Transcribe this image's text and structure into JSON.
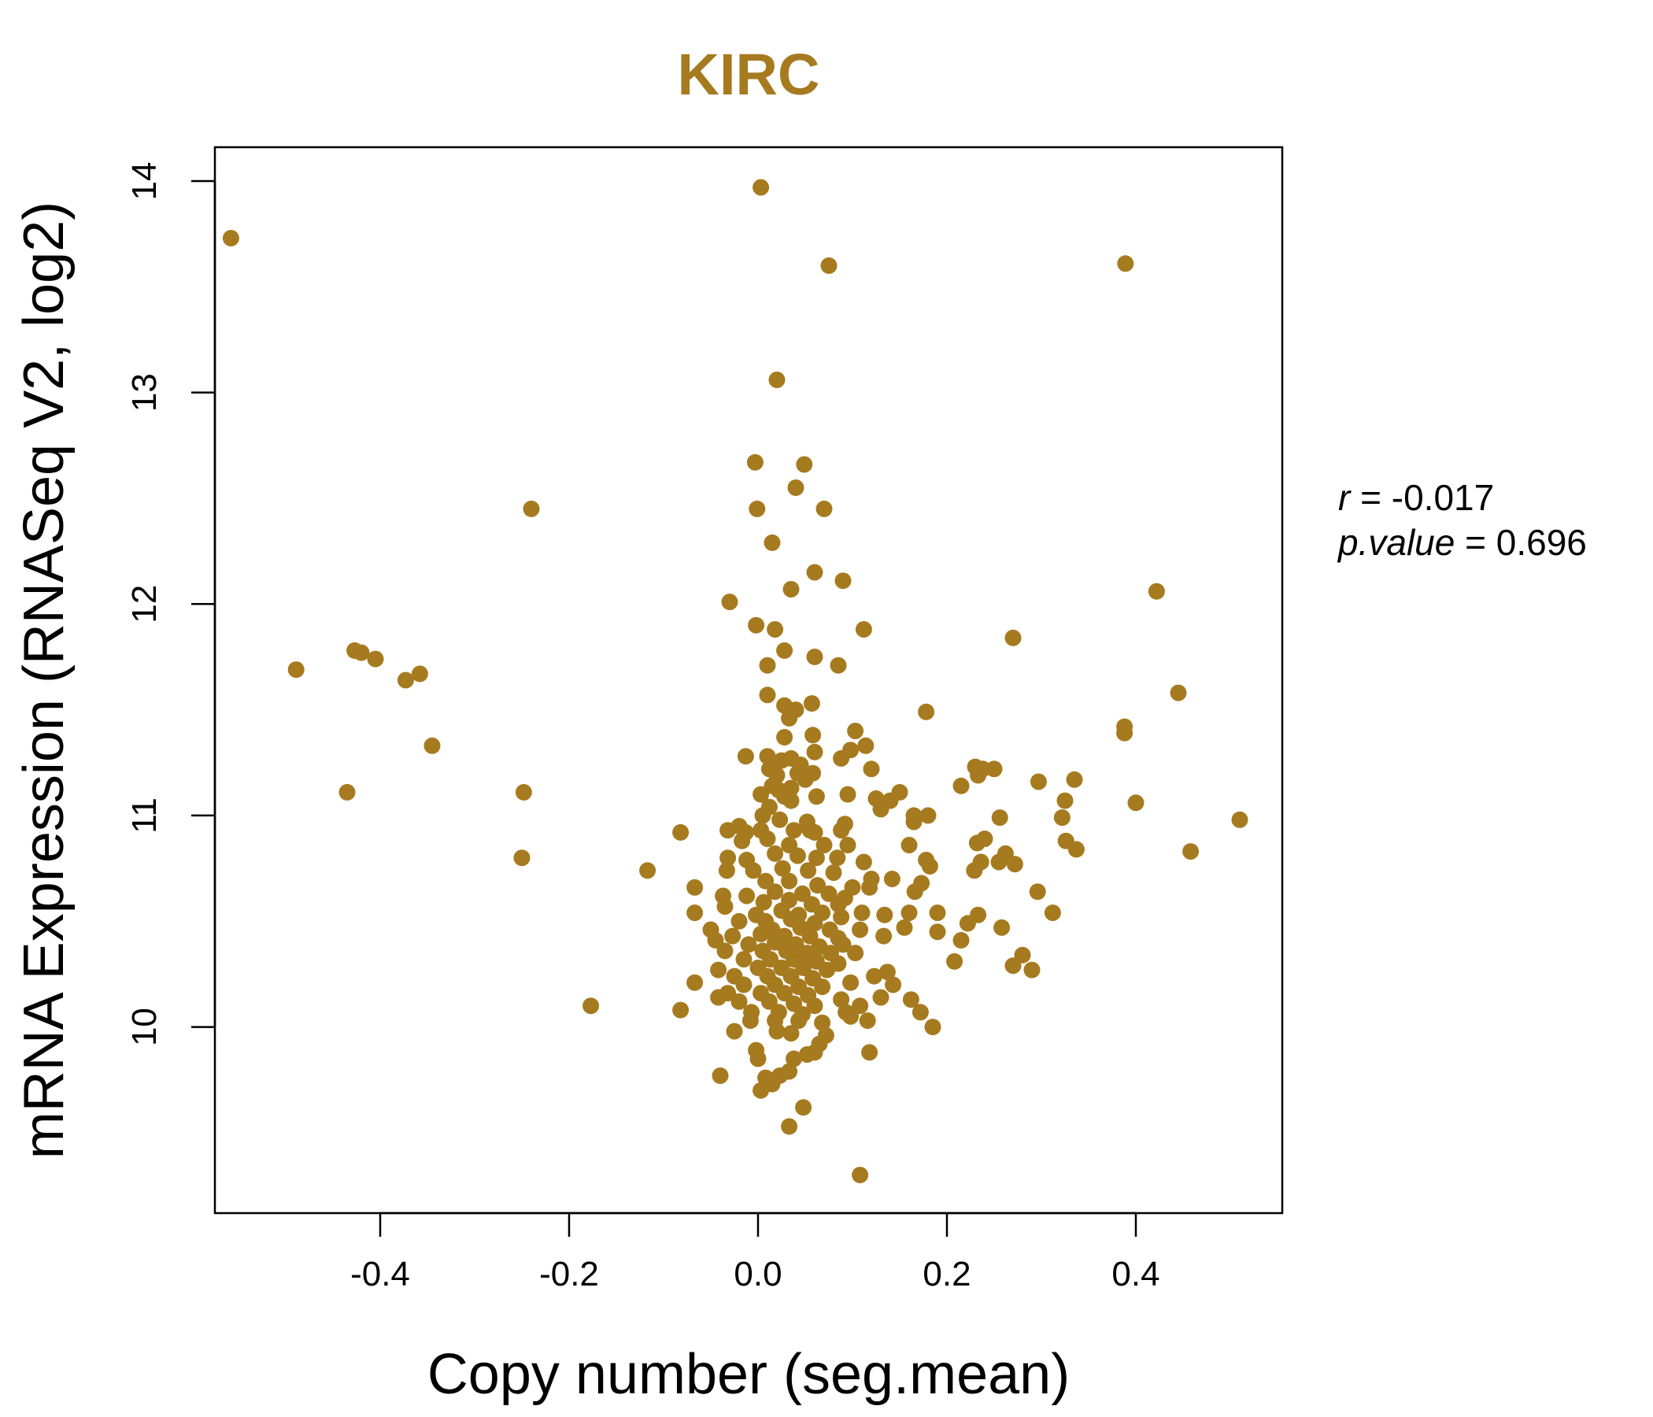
{
  "chart_data": {
    "type": "scatter",
    "title": "KIRC",
    "xlabel": "Copy number (seg.mean)",
    "ylabel": "mRNA Expression (RNASeq V2, log2)",
    "xlim": [
      -0.575,
      0.555
    ],
    "ylim": [
      9.12,
      14.16
    ],
    "x_ticks": [
      -0.4,
      -0.2,
      0.0,
      0.2,
      0.4
    ],
    "x_tick_labels": [
      "-0.4",
      "-0.2",
      "0.0",
      "0.2",
      "0.4"
    ],
    "y_ticks": [
      10,
      11,
      12,
      13,
      14
    ],
    "y_tick_labels": [
      "10",
      "11",
      "12",
      "13",
      "14"
    ],
    "grid": false,
    "point_color": "#A67A1F",
    "stats": {
      "r_label": "r",
      "r_value": "-0.017",
      "p_label": "p.value",
      "p_value": "0.696"
    },
    "points": [
      [
        -0.558,
        13.73
      ],
      [
        0.003,
        13.97
      ],
      [
        0.075,
        13.6
      ],
      [
        0.389,
        13.61
      ],
      [
        0.02,
        13.06
      ],
      [
        -0.24,
        12.45
      ],
      [
        -0.003,
        12.67
      ],
      [
        0.049,
        12.66
      ],
      [
        -0.001,
        12.45
      ],
      [
        0.04,
        12.55
      ],
      [
        0.07,
        12.45
      ],
      [
        0.015,
        12.29
      ],
      [
        0.06,
        12.15
      ],
      [
        0.035,
        12.07
      ],
      [
        0.09,
        12.11
      ],
      [
        0.422,
        12.06
      ],
      [
        -0.03,
        12.01
      ],
      [
        -0.002,
        11.9
      ],
      [
        0.018,
        11.88
      ],
      [
        0.112,
        11.88
      ],
      [
        0.27,
        11.84
      ],
      [
        -0.427,
        11.78
      ],
      [
        -0.42,
        11.77
      ],
      [
        -0.405,
        11.74
      ],
      [
        -0.489,
        11.69
      ],
      [
        -0.358,
        11.67
      ],
      [
        -0.373,
        11.64
      ],
      [
        0.028,
        11.78
      ],
      [
        0.06,
        11.75
      ],
      [
        0.085,
        11.71
      ],
      [
        0.01,
        11.71
      ],
      [
        0.445,
        11.58
      ],
      [
        0.01,
        11.57
      ],
      [
        0.057,
        11.53
      ],
      [
        0.028,
        11.52
      ],
      [
        0.04,
        11.5
      ],
      [
        0.033,
        11.46
      ],
      [
        0.178,
        11.49
      ],
      [
        -0.345,
        11.33
      ],
      [
        0.388,
        11.42
      ],
      [
        0.388,
        11.39
      ],
      [
        0.103,
        11.4
      ],
      [
        0.058,
        11.38
      ],
      [
        0.028,
        11.37
      ],
      [
        0.114,
        11.33
      ],
      [
        0.098,
        11.31
      ],
      [
        -0.013,
        11.28
      ],
      [
        0.01,
        11.28
      ],
      [
        0.025,
        11.26
      ],
      [
        0.06,
        11.3
      ],
      [
        0.035,
        11.27
      ],
      [
        0.088,
        11.27
      ],
      [
        0.012,
        11.22
      ],
      [
        0.045,
        11.24
      ],
      [
        0.12,
        11.22
      ],
      [
        0.23,
        11.23
      ],
      [
        0.25,
        11.22
      ],
      [
        0.238,
        11.22
      ],
      [
        0.233,
        11.19
      ],
      [
        0.058,
        11.2
      ],
      [
        0.042,
        11.2
      ],
      [
        0.02,
        11.19
      ],
      [
        0.335,
        11.17
      ],
      [
        0.297,
        11.16
      ],
      [
        0.05,
        11.17
      ],
      [
        0.015,
        11.14
      ],
      [
        0.035,
        11.13
      ],
      [
        0.022,
        11.12
      ],
      [
        0.215,
        11.14
      ],
      [
        -0.435,
        11.11
      ],
      [
        -0.248,
        11.11
      ],
      [
        0.15,
        11.11
      ],
      [
        0.095,
        11.1
      ],
      [
        0.125,
        11.08
      ],
      [
        0.14,
        11.07
      ],
      [
        0.062,
        11.09
      ],
      [
        0.028,
        11.09
      ],
      [
        0.003,
        11.1
      ],
      [
        0.035,
        11.07
      ],
      [
        0.325,
        11.07
      ],
      [
        0.4,
        11.06
      ],
      [
        0.13,
        11.03
      ],
      [
        0.012,
        11.04
      ],
      [
        0.165,
        11.0
      ],
      [
        0.18,
        11.0
      ],
      [
        0.256,
        10.99
      ],
      [
        0.322,
        10.99
      ],
      [
        0.51,
        10.98
      ],
      [
        0.005,
        11.0
      ],
      [
        0.023,
        10.98
      ],
      [
        0.052,
        10.97
      ],
      [
        0.092,
        10.96
      ],
      [
        0.165,
        10.97
      ],
      [
        -0.02,
        10.95
      ],
      [
        -0.032,
        10.93
      ],
      [
        -0.082,
        10.92
      ],
      [
        -0.013,
        10.92
      ],
      [
        0.003,
        10.93
      ],
      [
        0.038,
        10.93
      ],
      [
        0.055,
        10.93
      ],
      [
        0.06,
        10.92
      ],
      [
        0.088,
        10.93
      ],
      [
        0.24,
        10.89
      ],
      [
        0.232,
        10.87
      ],
      [
        0.326,
        10.88
      ],
      [
        0.337,
        10.84
      ],
      [
        0.458,
        10.83
      ],
      [
        0.16,
        10.86
      ],
      [
        -0.017,
        10.88
      ],
      [
        0.01,
        10.89
      ],
      [
        0.033,
        10.86
      ],
      [
        0.07,
        10.86
      ],
      [
        0.095,
        10.86
      ],
      [
        -0.25,
        10.8
      ],
      [
        -0.032,
        10.8
      ],
      [
        -0.012,
        10.79
      ],
      [
        0.018,
        10.82
      ],
      [
        0.042,
        10.81
      ],
      [
        0.062,
        10.8
      ],
      [
        0.084,
        10.8
      ],
      [
        0.112,
        10.78
      ],
      [
        0.178,
        10.79
      ],
      [
        0.182,
        10.76
      ],
      [
        0.236,
        10.78
      ],
      [
        0.262,
        10.82
      ],
      [
        0.255,
        10.78
      ],
      [
        0.272,
        10.77
      ],
      [
        0.229,
        10.74
      ],
      [
        -0.117,
        10.74
      ],
      [
        -0.033,
        10.74
      ],
      [
        -0.005,
        10.74
      ],
      [
        0.026,
        10.75
      ],
      [
        0.053,
        10.74
      ],
      [
        0.08,
        10.73
      ],
      [
        0.12,
        10.7
      ],
      [
        0.142,
        10.7
      ],
      [
        0.173,
        10.68
      ],
      [
        0.118,
        10.66
      ],
      [
        -0.067,
        10.66
      ],
      [
        0.008,
        10.69
      ],
      [
        0.033,
        10.69
      ],
      [
        0.063,
        10.67
      ],
      [
        0.1,
        10.66
      ],
      [
        0.166,
        10.64
      ],
      [
        0.296,
        10.64
      ],
      [
        -0.037,
        10.62
      ],
      [
        -0.012,
        10.62
      ],
      [
        0.018,
        10.64
      ],
      [
        0.047,
        10.63
      ],
      [
        0.075,
        10.63
      ],
      [
        0.092,
        10.61
      ],
      [
        -0.035,
        10.57
      ],
      [
        0.006,
        10.59
      ],
      [
        0.033,
        10.6
      ],
      [
        0.057,
        10.58
      ],
      [
        0.085,
        10.58
      ],
      [
        -0.067,
        10.54
      ],
      [
        0.11,
        10.54
      ],
      [
        0.134,
        10.53
      ],
      [
        0.16,
        10.54
      ],
      [
        0.19,
        10.54
      ],
      [
        0.233,
        10.53
      ],
      [
        0.312,
        10.54
      ],
      [
        -0.002,
        10.53
      ],
      [
        0.025,
        10.55
      ],
      [
        0.043,
        10.53
      ],
      [
        0.068,
        10.54
      ],
      [
        0.088,
        10.52
      ],
      [
        -0.02,
        10.5
      ],
      [
        0.008,
        10.5
      ],
      [
        0.035,
        10.51
      ],
      [
        0.06,
        10.49
      ],
      [
        0.222,
        10.49
      ],
      [
        0.258,
        10.47
      ],
      [
        0.155,
        10.47
      ],
      [
        0.108,
        10.46
      ],
      [
        -0.05,
        10.46
      ],
      [
        0.015,
        10.46
      ],
      [
        0.045,
        10.47
      ],
      [
        0.076,
        10.46
      ],
      [
        0.19,
        10.45
      ],
      [
        0.133,
        10.43
      ],
      [
        -0.027,
        10.43
      ],
      [
        0.003,
        10.44
      ],
      [
        0.028,
        10.43
      ],
      [
        0.055,
        10.43
      ],
      [
        0.085,
        10.42
      ],
      [
        -0.045,
        10.41
      ],
      [
        0.215,
        10.41
      ],
      [
        -0.01,
        10.39
      ],
      [
        0.018,
        10.4
      ],
      [
        0.04,
        10.39
      ],
      [
        0.065,
        10.38
      ],
      [
        0.09,
        10.39
      ],
      [
        -0.035,
        10.36
      ],
      [
        0.005,
        10.36
      ],
      [
        0.03,
        10.36
      ],
      [
        0.052,
        10.35
      ],
      [
        0.077,
        10.35
      ],
      [
        0.103,
        10.35
      ],
      [
        0.28,
        10.34
      ],
      [
        -0.015,
        10.32
      ],
      [
        0.013,
        10.32
      ],
      [
        0.038,
        10.32
      ],
      [
        0.062,
        10.31
      ],
      [
        0.085,
        10.3
      ],
      [
        0.208,
        10.31
      ],
      [
        0.27,
        10.29
      ],
      [
        0.29,
        10.27
      ],
      [
        -0.042,
        10.27
      ],
      [
        0.0,
        10.28
      ],
      [
        0.025,
        10.28
      ],
      [
        0.048,
        10.28
      ],
      [
        0.073,
        10.27
      ],
      [
        0.137,
        10.26
      ],
      [
        0.123,
        10.24
      ],
      [
        -0.025,
        10.24
      ],
      [
        0.01,
        10.24
      ],
      [
        0.035,
        10.24
      ],
      [
        0.058,
        10.23
      ],
      [
        -0.067,
        10.21
      ],
      [
        0.098,
        10.21
      ],
      [
        0.143,
        10.2
      ],
      [
        -0.015,
        10.2
      ],
      [
        0.018,
        10.2
      ],
      [
        0.043,
        10.19
      ],
      [
        0.068,
        10.19
      ],
      [
        -0.032,
        10.16
      ],
      [
        0.003,
        10.16
      ],
      [
        0.028,
        10.16
      ],
      [
        0.053,
        10.15
      ],
      [
        0.088,
        10.13
      ],
      [
        0.13,
        10.14
      ],
      [
        0.162,
        10.13
      ],
      [
        -0.042,
        10.14
      ],
      [
        0.108,
        10.1
      ],
      [
        -0.177,
        10.1
      ],
      [
        -0.082,
        10.08
      ],
      [
        -0.02,
        10.12
      ],
      [
        0.012,
        10.12
      ],
      [
        0.038,
        10.11
      ],
      [
        0.06,
        10.1
      ],
      [
        0.093,
        10.07
      ],
      [
        0.172,
        10.07
      ],
      [
        -0.007,
        10.07
      ],
      [
        0.022,
        10.07
      ],
      [
        0.047,
        10.06
      ],
      [
        0.098,
        10.05
      ],
      [
        0.116,
        10.03
      ],
      [
        -0.008,
        10.03
      ],
      [
        0.018,
        10.03
      ],
      [
        0.043,
        10.03
      ],
      [
        0.068,
        10.02
      ],
      [
        0.185,
        10.0
      ],
      [
        -0.025,
        9.98
      ],
      [
        0.02,
        9.98
      ],
      [
        0.035,
        9.97
      ],
      [
        0.072,
        9.96
      ],
      [
        0.065,
        9.92
      ],
      [
        -0.002,
        9.89
      ],
      [
        0.06,
        9.88
      ],
      [
        0.118,
        9.88
      ],
      [
        0.052,
        9.87
      ],
      [
        0.0,
        9.85
      ],
      [
        0.038,
        9.85
      ],
      [
        -0.04,
        9.77
      ],
      [
        0.008,
        9.76
      ],
      [
        0.023,
        9.77
      ],
      [
        0.033,
        9.79
      ],
      [
        0.015,
        9.73
      ],
      [
        0.003,
        9.7
      ],
      [
        0.048,
        9.62
      ],
      [
        0.033,
        9.53
      ],
      [
        0.108,
        9.3
      ]
    ]
  }
}
